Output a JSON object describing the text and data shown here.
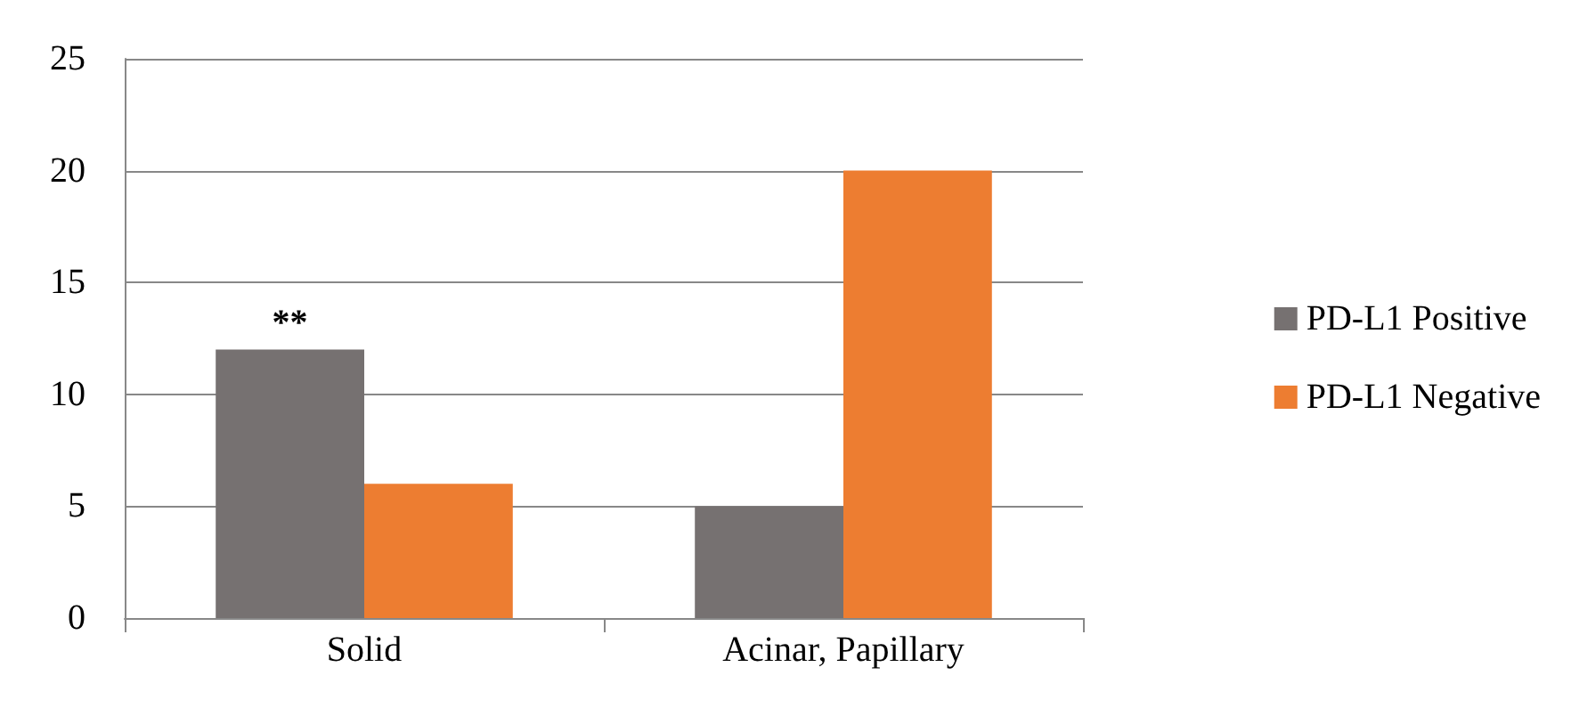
{
  "chart_data": {
    "type": "bar",
    "categories": [
      "Solid",
      "Acinar, Papillary"
    ],
    "series": [
      {
        "name": "PD-L1 Positive",
        "color": "#767171",
        "values": [
          12,
          5
        ]
      },
      {
        "name": "PD-L1 Negative",
        "color": "#ed7d31",
        "values": [
          6,
          20
        ]
      }
    ],
    "ylim": [
      0,
      25
    ],
    "yticks": [
      0,
      5,
      10,
      15,
      20,
      25
    ],
    "grid": "y",
    "legend": "right",
    "annotations": [
      {
        "text": "**",
        "x": "Solid",
        "y": 12
      }
    ]
  }
}
